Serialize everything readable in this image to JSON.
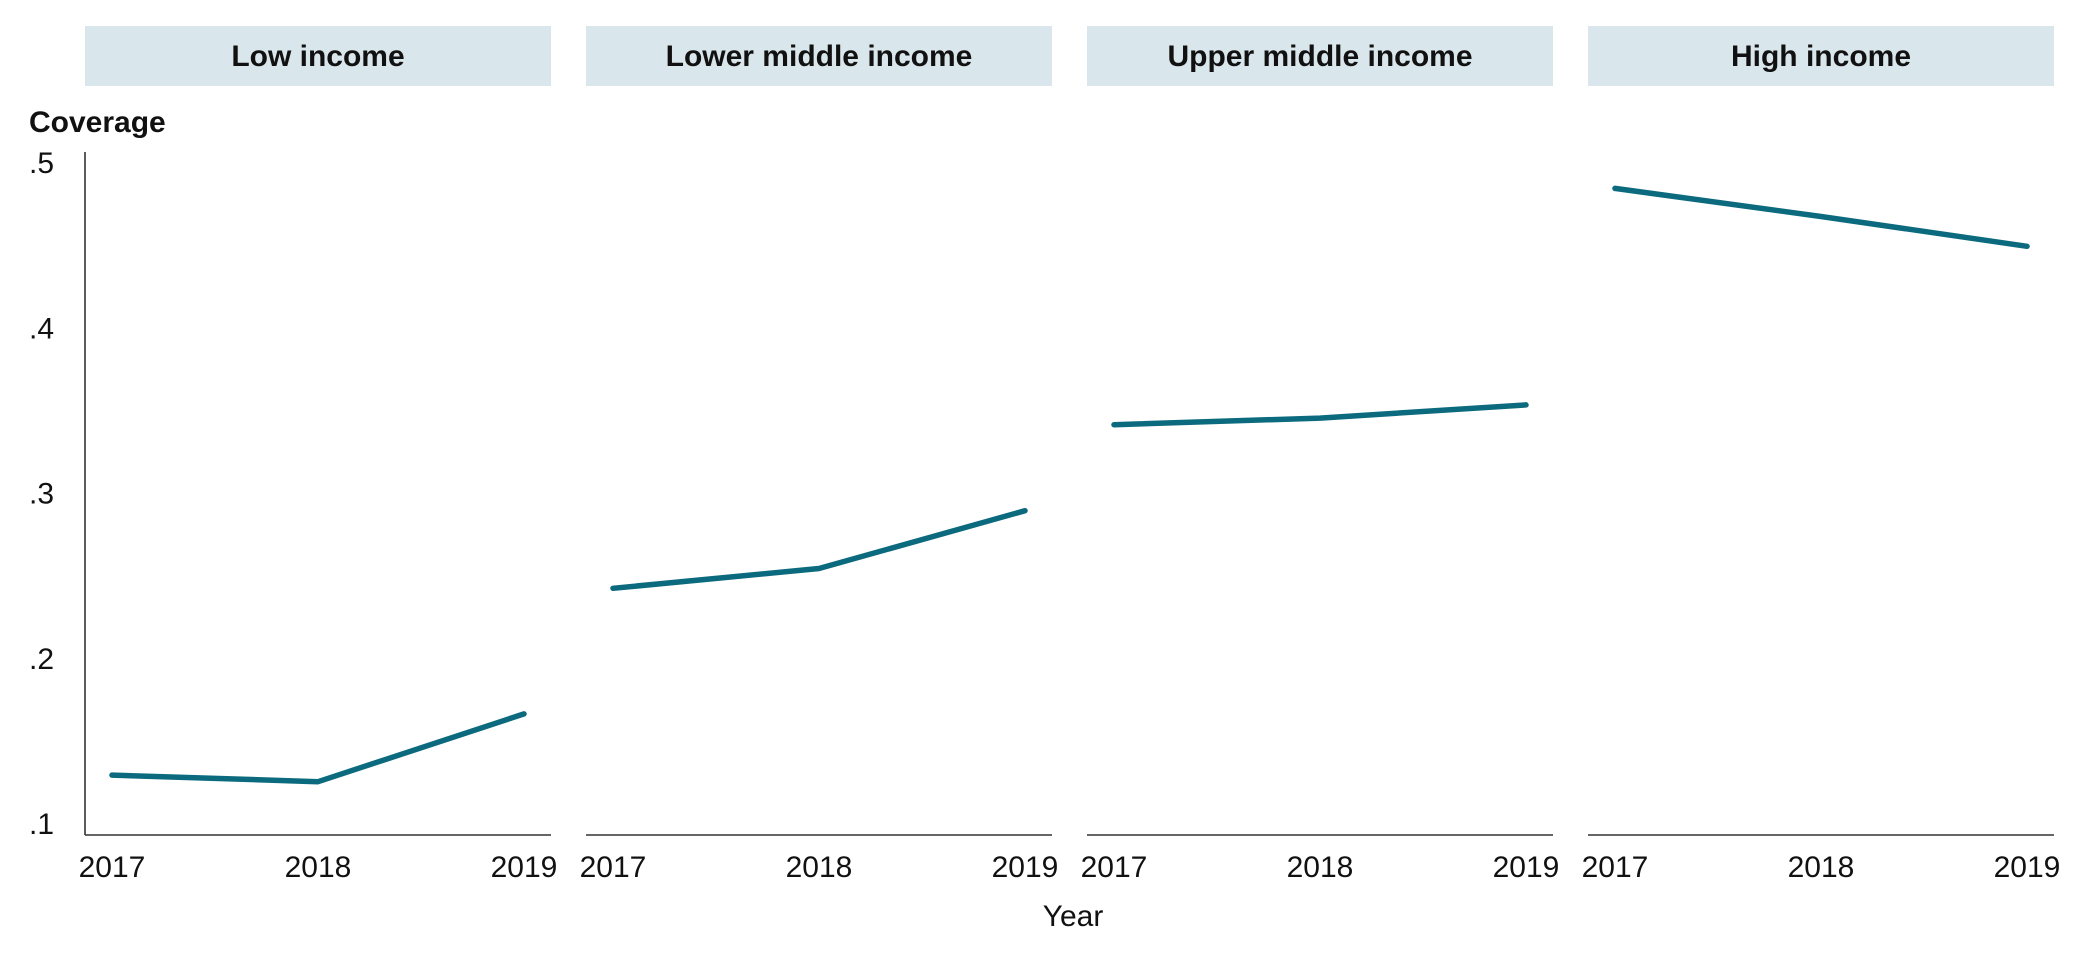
{
  "chart_data": {
    "type": "line",
    "ylabel": "Coverage",
    "xlabel": "Year",
    "x": [
      "2017",
      "2018",
      "2019"
    ],
    "ylim": [
      0.1,
      0.5
    ],
    "yticks": [
      ".1",
      ".2",
      ".3",
      ".4",
      ".5"
    ],
    "facets": [
      {
        "title": "Low income",
        "values": [
          0.129,
          0.125,
          0.166
        ]
      },
      {
        "title": "Lower middle income",
        "values": [
          0.242,
          0.254,
          0.289
        ]
      },
      {
        "title": "Upper middle income",
        "values": [
          0.341,
          0.345,
          0.353
        ]
      },
      {
        "title": "High income",
        "values": [
          0.484,
          0.467,
          0.449
        ]
      }
    ],
    "line_color": "#0b6a7d",
    "grid": false
  }
}
